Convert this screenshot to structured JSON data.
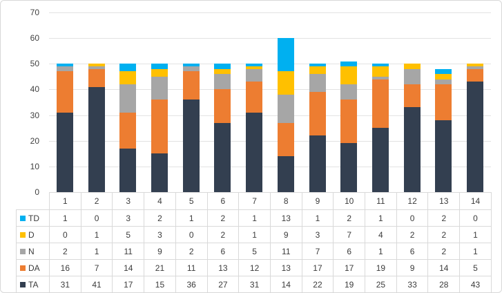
{
  "chart_data": {
    "type": "bar",
    "stacked": true,
    "title": "",
    "xlabel": "",
    "ylabel": "",
    "categories": [
      "1",
      "2",
      "3",
      "4",
      "5",
      "6",
      "7",
      "8",
      "9",
      "10",
      "11",
      "12",
      "13",
      "14"
    ],
    "series": [
      {
        "name": "TD",
        "color": "#00B0F0",
        "values": [
          1,
          0,
          3,
          2,
          1,
          2,
          1,
          13,
          1,
          2,
          1,
          0,
          2,
          0
        ]
      },
      {
        "name": "D",
        "color": "#FFC000",
        "values": [
          0,
          1,
          5,
          3,
          0,
          2,
          1,
          9,
          3,
          7,
          4,
          2,
          2,
          1
        ]
      },
      {
        "name": "N",
        "color": "#A6A6A6",
        "values": [
          2,
          1,
          11,
          9,
          2,
          6,
          5,
          11,
          7,
          6,
          1,
          6,
          2,
          1
        ]
      },
      {
        "name": "DA",
        "color": "#ED7D31",
        "values": [
          16,
          7,
          14,
          21,
          11,
          13,
          12,
          13,
          17,
          17,
          19,
          9,
          14,
          5
        ]
      },
      {
        "name": "TA",
        "color": "#333F50",
        "values": [
          31,
          41,
          17,
          15,
          36,
          27,
          31,
          14,
          22,
          19,
          25,
          33,
          28,
          43
        ]
      }
    ],
    "ylim": [
      0,
      70
    ],
    "ytick_interval": 10,
    "ytick_labels": [
      "0",
      "10",
      "20",
      "30",
      "40",
      "50",
      "60",
      "70"
    ],
    "grid": true,
    "gridline_color": "#e2e2e2",
    "legend_position": "data-table-rows",
    "data_table_shown": true
  }
}
